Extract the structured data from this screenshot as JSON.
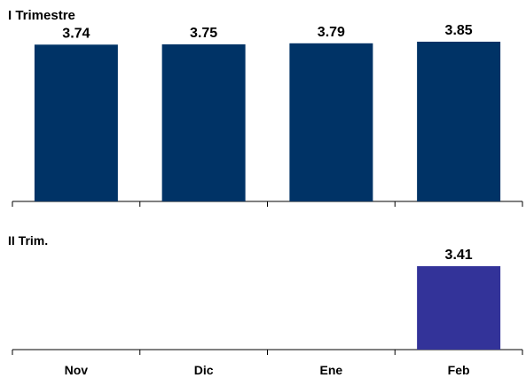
{
  "chart_data": [
    {
      "type": "bar",
      "title": "I Trimestre",
      "categories": [
        "Nov",
        "Dic",
        "Ene",
        "Feb"
      ],
      "values": [
        3.74,
        3.75,
        3.79,
        3.85
      ],
      "data_labels": [
        "3.74",
        "3.75",
        "3.79",
        "3.85"
      ],
      "color": "#003366",
      "ylim": [
        0,
        3.85
      ]
    },
    {
      "type": "bar",
      "title": "II Trim.",
      "categories": [
        "Nov",
        "Dic",
        "Ene",
        "Feb"
      ],
      "values": [
        null,
        null,
        null,
        3.41
      ],
      "data_labels": [
        "",
        "",
        "",
        "3.41"
      ],
      "color": "#333399",
      "ylim": [
        0,
        3.85
      ]
    }
  ]
}
